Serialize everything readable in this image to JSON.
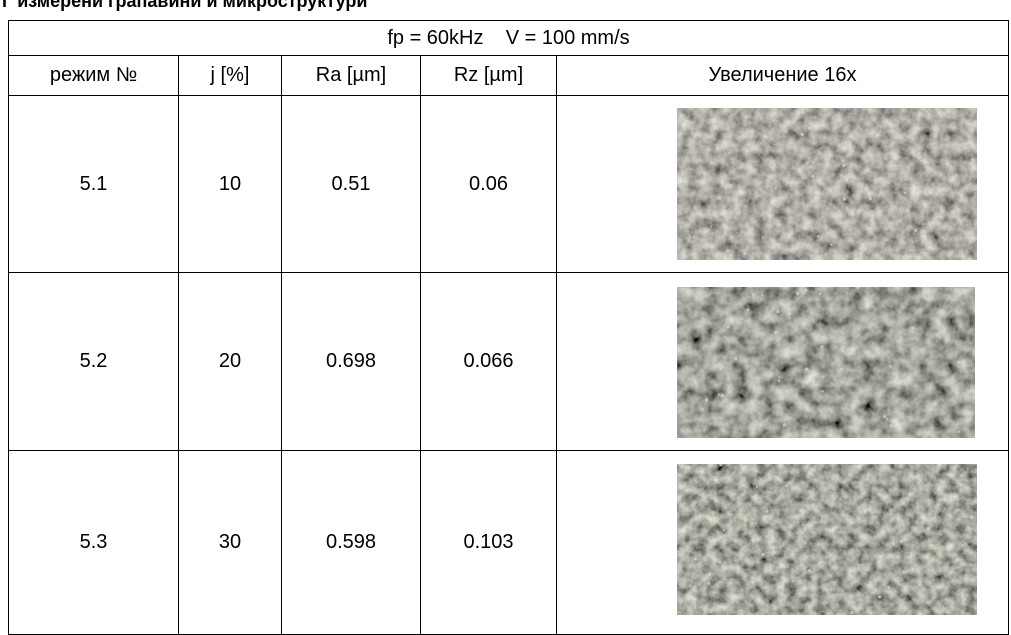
{
  "header": {
    "title": "Г измерени грапавини и микроструктури"
  },
  "table": {
    "caption": "fp = 60kHz    V = 100 mm/s",
    "columns": [
      "режим №",
      "j [%]",
      "Ra [µm]",
      "Rz [µm]",
      "Увеличение 16x"
    ],
    "rows": [
      [
        "5.1",
        "10",
        "0.51",
        "0.06"
      ],
      [
        "5.2",
        "20",
        "0.698",
        "0.066"
      ],
      [
        "5.3",
        "30",
        "0.598",
        "0.103"
      ]
    ]
  }
}
